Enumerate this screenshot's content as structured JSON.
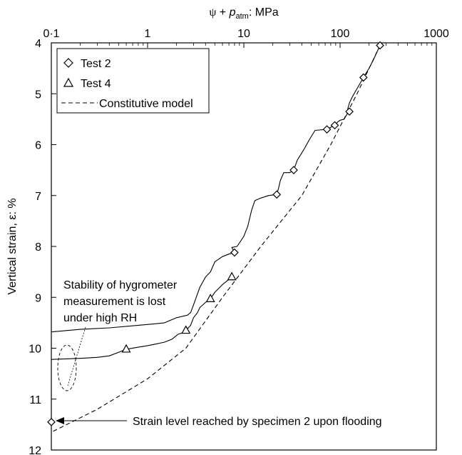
{
  "chart_data": {
    "type": "line",
    "x_axis": {
      "label_parts": [
        "ψ",
        " + ",
        "p",
        "atm",
        ": MPa"
      ],
      "scale": "log",
      "range": [
        0.1,
        1000
      ],
      "position": "top",
      "ticks": [
        0.1,
        1,
        10,
        100,
        1000
      ],
      "tick_labels": [
        "0·1",
        "1",
        "10",
        "100",
        "1000"
      ]
    },
    "y_axis": {
      "label": "Vertical strain, ε: %",
      "range": [
        4,
        12
      ],
      "inverted": true,
      "ticks": [
        4,
        5,
        6,
        7,
        8,
        9,
        10,
        11,
        12
      ],
      "tick_labels": [
        "4",
        "5",
        "6",
        "7",
        "8",
        "9",
        "10",
        "11",
        "12"
      ]
    },
    "legend": {
      "position": "top-left",
      "entries": [
        {
          "label": "Test 2",
          "marker": "diamond"
        },
        {
          "label": "Test 4",
          "marker": "triangle"
        },
        {
          "label": "Constitutive model",
          "marker": "dashed-line"
        }
      ]
    },
    "series": [
      {
        "name": "Test 2",
        "marker": "diamond",
        "points": [
          [
            260,
            4.05
          ],
          [
            175,
            4.68
          ],
          [
            125,
            5.35
          ],
          [
            88,
            5.62
          ],
          [
            73,
            5.7
          ],
          [
            33,
            6.5
          ],
          [
            22,
            6.98
          ],
          [
            8,
            8.12
          ],
          [
            0.1,
            11.45
          ]
        ],
        "curve": [
          [
            260,
            4.05
          ],
          [
            220,
            4.35
          ],
          [
            200,
            4.5
          ],
          [
            175,
            4.68
          ],
          [
            150,
            4.9
          ],
          [
            135,
            5.05
          ],
          [
            125,
            5.18
          ],
          [
            120,
            5.3
          ],
          [
            125,
            5.35
          ],
          [
            120,
            5.38
          ],
          [
            110,
            5.5
          ],
          [
            100,
            5.52
          ],
          [
            95,
            5.55
          ],
          [
            88,
            5.62
          ],
          [
            80,
            5.66
          ],
          [
            73,
            5.7
          ],
          [
            55,
            5.72
          ],
          [
            48,
            5.9
          ],
          [
            42,
            6.1
          ],
          [
            36,
            6.3
          ],
          [
            33,
            6.5
          ],
          [
            30,
            6.55
          ],
          [
            26,
            6.55
          ],
          [
            24,
            6.7
          ],
          [
            23,
            6.85
          ],
          [
            22,
            6.98
          ],
          [
            18,
            7.0
          ],
          [
            15,
            7.05
          ],
          [
            13,
            7.1
          ],
          [
            12,
            7.3
          ],
          [
            11,
            7.6
          ],
          [
            10,
            7.8
          ],
          [
            8.5,
            8.0
          ],
          [
            7.5,
            8.02
          ],
          [
            8,
            8.12
          ],
          [
            7,
            8.15
          ],
          [
            6,
            8.2
          ],
          [
            5,
            8.3
          ],
          [
            4.5,
            8.5
          ],
          [
            4,
            8.6
          ],
          [
            3.5,
            8.8
          ],
          [
            3.2,
            9.0
          ],
          [
            3,
            9.15
          ],
          [
            2.8,
            9.3
          ],
          [
            2.6,
            9.35
          ],
          [
            2,
            9.4
          ],
          [
            1.5,
            9.5
          ],
          [
            1.2,
            9.52
          ],
          [
            0.8,
            9.55
          ],
          [
            0.4,
            9.6
          ],
          [
            0.2,
            9.63
          ],
          [
            0.1,
            9.68
          ]
        ]
      },
      {
        "name": "Test 4",
        "marker": "triangle",
        "points": [
          [
            7.5,
            8.6
          ],
          [
            4.5,
            9.03
          ],
          [
            2.5,
            9.65
          ],
          [
            0.6,
            10.02
          ]
        ],
        "curve": [
          [
            7.5,
            8.6
          ],
          [
            6,
            8.75
          ],
          [
            5,
            8.9
          ],
          [
            4.5,
            9.03
          ],
          [
            4,
            9.1
          ],
          [
            3.5,
            9.2
          ],
          [
            3.3,
            9.3
          ],
          [
            3,
            9.4
          ],
          [
            2.8,
            9.55
          ],
          [
            2.5,
            9.65
          ],
          [
            2.3,
            9.7
          ],
          [
            2.1,
            9.72
          ],
          [
            2,
            9.75
          ],
          [
            1.8,
            9.82
          ],
          [
            1.5,
            9.88
          ],
          [
            1.2,
            9.92
          ],
          [
            1,
            9.95
          ],
          [
            0.8,
            9.98
          ],
          [
            0.6,
            10.02
          ],
          [
            0.5,
            10.08
          ],
          [
            0.4,
            10.15
          ],
          [
            0.3,
            10.18
          ],
          [
            0.2,
            10.2
          ],
          [
            0.1,
            10.22
          ]
        ]
      },
      {
        "name": "Constitutive model",
        "style": "dashed",
        "curve": [
          [
            260,
            4.05
          ],
          [
            150,
            5.0
          ],
          [
            80,
            6.0
          ],
          [
            40,
            7.0
          ],
          [
            15,
            8.0
          ],
          [
            6,
            9.0
          ],
          [
            2.5,
            10.0
          ],
          [
            1,
            10.6
          ],
          [
            0.3,
            11.2
          ],
          [
            0.1,
            11.65
          ]
        ]
      }
    ],
    "annotations": [
      {
        "text_lines": [
          "Stability of hygrometer",
          "measurement is lost",
          "under high RH"
        ]
      },
      {
        "text": "Strain level reached by specimen 2 upon flooding"
      }
    ]
  }
}
